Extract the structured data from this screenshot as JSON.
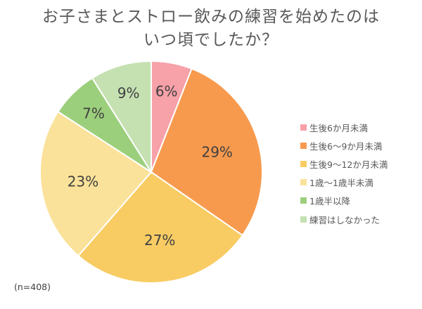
{
  "chart_data": {
    "type": "pie",
    "title_lines": [
      "お子さまとストロー飲みの練習を始めたのは",
      "いつ頃でしたか？"
    ],
    "categories": [
      "生後6か月未満",
      "生後6〜9か月未満",
      "生後9〜12か月未満",
      "1歳〜1歳半未満",
      "1歳半以降",
      "練習はしなかった"
    ],
    "values": [
      6,
      29,
      27,
      23,
      7,
      9
    ],
    "labels": [
      "6%",
      "29%",
      "27%",
      "23%",
      "7%",
      "9%"
    ],
    "colors": [
      "#f7a1a8",
      "#f79a4e",
      "#f8cc63",
      "#fbe29a",
      "#9ccf7c",
      "#c5e1b2"
    ],
    "start_angle": "12 o'clock",
    "direction": "clockwise",
    "legend_position": "right"
  },
  "note": "(n=408)"
}
